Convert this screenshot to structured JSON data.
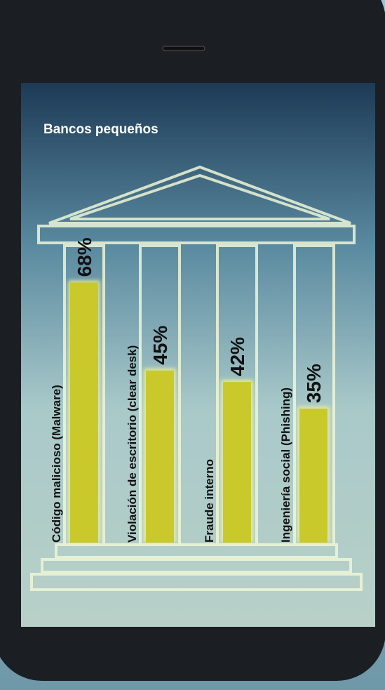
{
  "chart_data": {
    "type": "bar",
    "title": "Bancos pequeños",
    "categories": [
      "Código malicioso (Malware)",
      "Violación de escritorio (clear desk)",
      "Fraude interno",
      "Ingeniería social (Phishing)"
    ],
    "values": [
      68,
      45,
      42,
      35
    ],
    "value_labels": [
      "68%",
      "45%",
      "42%",
      "35%"
    ],
    "color": "#c9c92c"
  }
}
